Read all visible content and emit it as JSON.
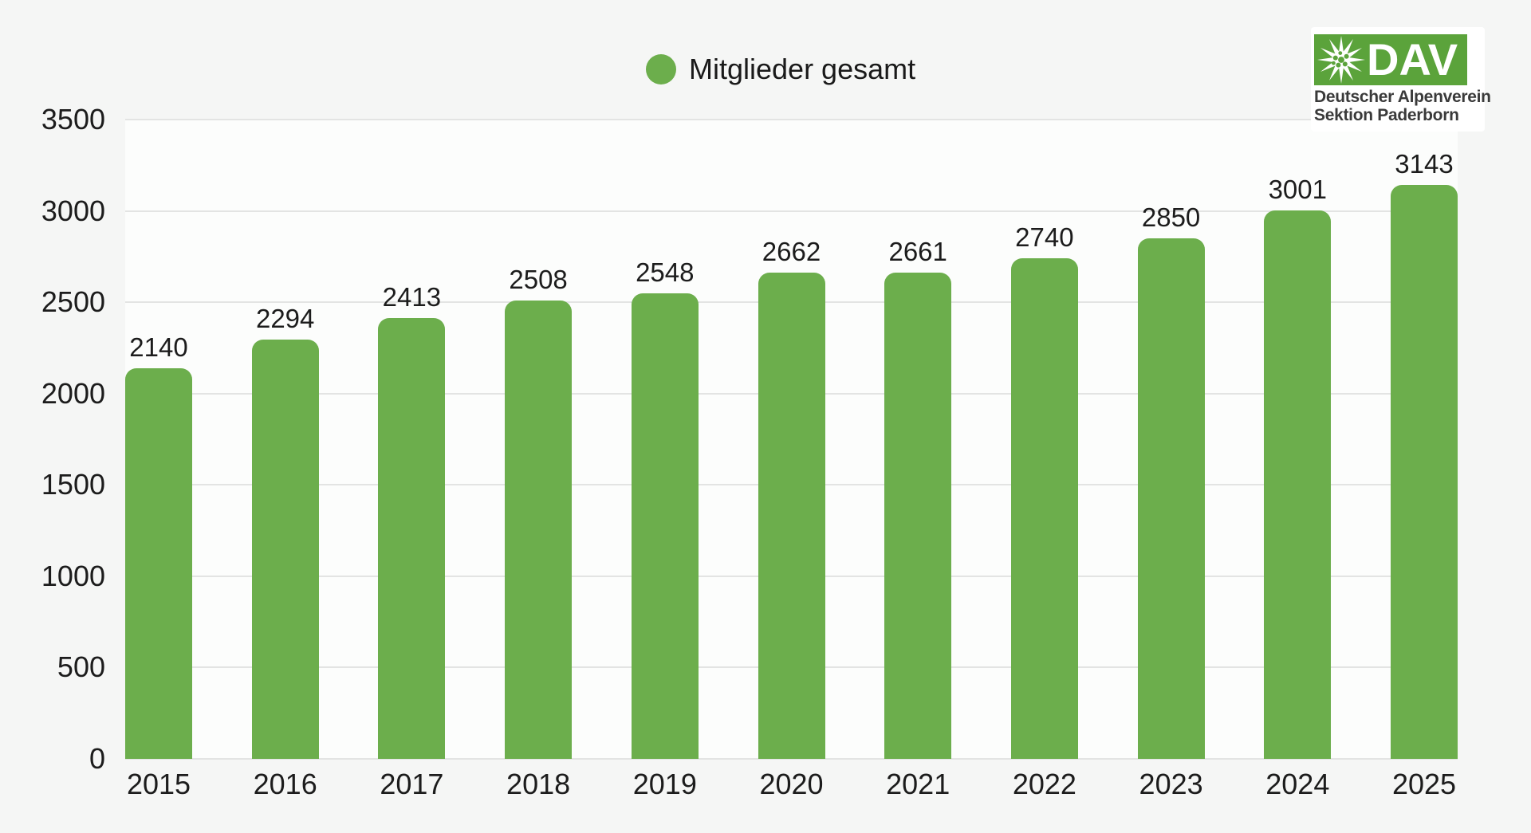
{
  "page": {
    "background": "#f5f6f5"
  },
  "legend": {
    "label": "Mitglieder gesamt",
    "dot_color": "#6cae4c"
  },
  "logo": {
    "wordmark": "DAV",
    "line1": "Deutscher Alpenverein",
    "line2": "Sektion Paderborn",
    "green": "#5ba33b",
    "icon": "edelweiss-icon"
  },
  "chart_data": {
    "type": "bar",
    "title": "",
    "xlabel": "",
    "ylabel": "",
    "categories": [
      "2015",
      "2016",
      "2017",
      "2018",
      "2019",
      "2020",
      "2021",
      "2022",
      "2023",
      "2024",
      "2025"
    ],
    "series": [
      {
        "name": "Mitglieder gesamt",
        "color": "#6cae4c",
        "values": [
          2140,
          2294,
          2413,
          2508,
          2548,
          2662,
          2661,
          2740,
          2850,
          3001,
          3143
        ]
      }
    ],
    "value_labels": [
      "2140",
      "2294",
      "2413",
      "2508",
      "2548",
      "2662",
      "2661",
      "2740",
      "2850",
      "3001",
      "3143"
    ],
    "ylim": [
      0,
      3500
    ],
    "yticks": [
      "0",
      "500",
      "1000",
      "1500",
      "2000",
      "2500",
      "3000",
      "3500"
    ],
    "grid": true,
    "legend_position": "top-center"
  }
}
